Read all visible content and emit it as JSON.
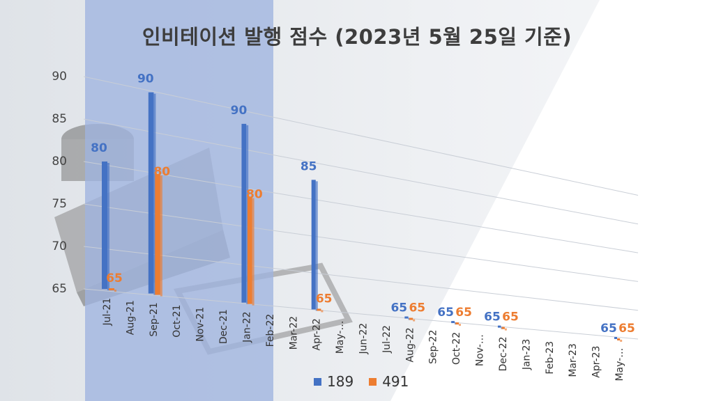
{
  "title": "인비테이션 발행 점수 (2023년 5월 25일 기준)",
  "colors": {
    "blue": "#4472C4",
    "orange": "#ED7D31",
    "highlight": "#9FB3DF"
  },
  "chart_data": {
    "type": "bar",
    "title": "인비테이션 발행 점수 (2023년 5월 25일 기준)",
    "categories": [
      "Jul-21",
      "Aug-21",
      "Sep-21",
      "Oct-21",
      "Nov-21",
      "Dec-21",
      "Jan-22",
      "Feb-22",
      "Mar-22",
      "Apr-22",
      "May-…",
      "Jun-22",
      "Jul-22",
      "Aug-22",
      "Sep-22",
      "Oct-22",
      "Nov-…",
      "Dec-22",
      "Jan-23",
      "Feb-23",
      "Mar-23",
      "Apr-23",
      "May-…"
    ],
    "series": [
      {
        "name": "189",
        "color": "#4472C4",
        "values": [
          80,
          null,
          90,
          null,
          null,
          null,
          90,
          null,
          null,
          85,
          null,
          null,
          null,
          65,
          null,
          65,
          null,
          65,
          null,
          null,
          null,
          null,
          65
        ]
      },
      {
        "name": "491",
        "color": "#ED7D31",
        "values": [
          65,
          null,
          80,
          null,
          null,
          null,
          80,
          null,
          null,
          65,
          null,
          null,
          null,
          65,
          null,
          65,
          null,
          65,
          null,
          null,
          null,
          null,
          65
        ]
      }
    ],
    "ylim": [
      65,
      90
    ],
    "yticks": [
      65,
      70,
      75,
      80,
      85,
      90
    ],
    "grid": true,
    "legend": "bottom"
  }
}
